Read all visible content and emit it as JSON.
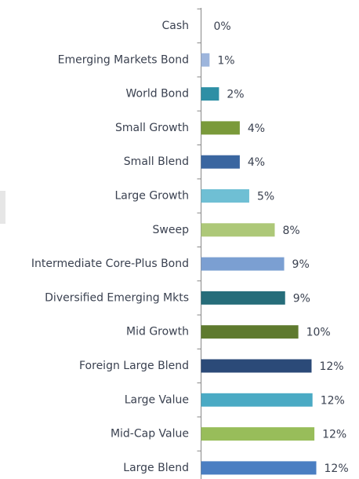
{
  "chart_data": {
    "type": "bar",
    "orientation": "horizontal",
    "categories": [
      "Cash",
      "Emerging Markets Bond",
      "World Bond",
      "Small Growth",
      "Small Blend",
      "Large Growth",
      "Sweep",
      "Intermediate Core-Plus Bond",
      "Diversified Emerging Mkts",
      "Mid Growth",
      "Foreign Large Blend",
      "Large Value",
      "Mid-Cap Value",
      "Large Blend"
    ],
    "values": [
      0,
      0.9,
      1.9,
      4.1,
      4.1,
      5.1,
      7.8,
      8.8,
      8.9,
      10.3,
      11.7,
      11.8,
      12.0,
      12.2
    ],
    "value_labels": [
      "0%",
      "1%",
      "2%",
      "4%",
      "4%",
      "5%",
      "8%",
      "9%",
      "9%",
      "10%",
      "12%",
      "12%",
      "12%",
      "12%"
    ],
    "colors": [
      "#9db5dc",
      "#9db5dc",
      "#2e8fa5",
      "#7a9a3a",
      "#3a66a0",
      "#6fbfd4",
      "#adc878",
      "#7b9fd2",
      "#266d7a",
      "#5e7a2e",
      "#2b4a78",
      "#4aaac4",
      "#98bd5a",
      "#4a7ec2"
    ]
  }
}
